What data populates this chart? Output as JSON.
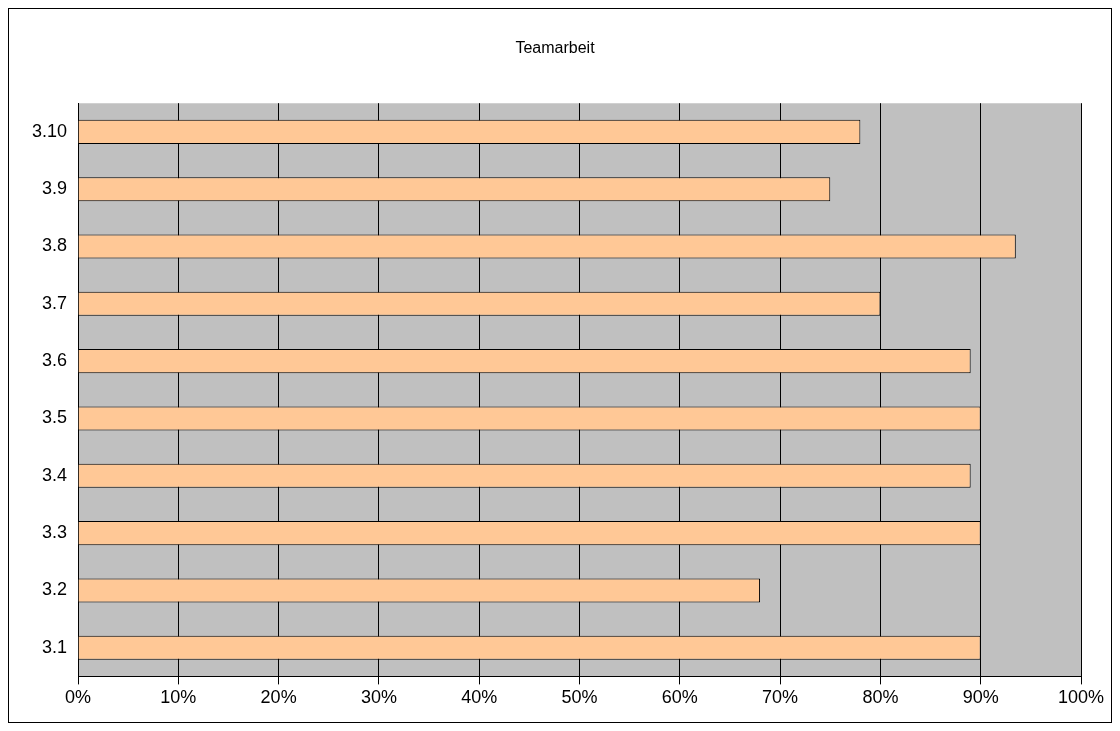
{
  "chart_data": {
    "type": "bar",
    "orientation": "horizontal",
    "title": "Teamarbeit",
    "categories": [
      "3.10",
      "3.9",
      "3.8",
      "3.7",
      "3.6",
      "3.5",
      "3.4",
      "3.3",
      "3.2",
      "3.1"
    ],
    "values": [
      78,
      75,
      93.5,
      80,
      89,
      90,
      89,
      90,
      68,
      90
    ],
    "color": "#ffc896",
    "xlim": [
      0,
      100
    ],
    "xticks": [
      {
        "value": 0,
        "label": "0%"
      },
      {
        "value": 10,
        "label": "10%"
      },
      {
        "value": 20,
        "label": "20%"
      },
      {
        "value": 30,
        "label": "30%"
      },
      {
        "value": 40,
        "label": "40%"
      },
      {
        "value": 50,
        "label": "50%"
      },
      {
        "value": 60,
        "label": "60%"
      },
      {
        "value": 70,
        "label": "70%"
      },
      {
        "value": 80,
        "label": "80%"
      },
      {
        "value": 90,
        "label": "90%"
      },
      {
        "value": 100,
        "label": "100%"
      }
    ],
    "grid": "x"
  }
}
